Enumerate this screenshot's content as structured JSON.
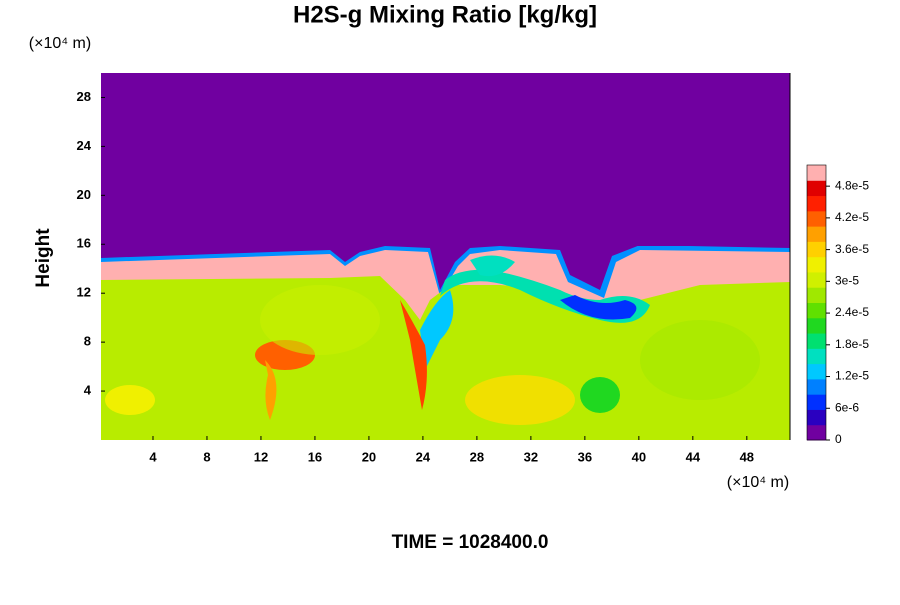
{
  "chart_data": {
    "type": "heatmap",
    "title": "H2S-g Mixing Ratio [kg/kg]",
    "y_label": "Height",
    "y_unit": "(×10⁴ m)",
    "x_unit": "(×10⁴ m)",
    "footer": "TIME = 1028400.0",
    "xlim": [
      0,
      51.2
    ],
    "ylim": [
      0,
      30
    ],
    "xticks": [
      4,
      8,
      12,
      16,
      20,
      24,
      28,
      32,
      36,
      40,
      44,
      48
    ],
    "yticks": [
      4,
      8,
      12,
      16,
      20,
      24,
      28
    ],
    "clim": [
      0,
      5.2e-05
    ],
    "cticks": [
      0,
      {
        "value": 6e-06,
        "label": "6e-6"
      },
      {
        "value": 1.2e-05,
        "label": "1.2e-5"
      },
      {
        "value": 1.8e-05,
        "label": "1.8e-5"
      },
      {
        "value": 2.4e-05,
        "label": "2.4e-5"
      },
      {
        "value": 3e-05,
        "label": "3e-5"
      },
      {
        "value": 3.6e-05,
        "label": "3.6e-5"
      },
      {
        "value": 4.2e-05,
        "label": "4.2e-5"
      },
      {
        "value": 4.8e-05,
        "label": "4.8e-5"
      }
    ],
    "colormap": [
      "#7000a0",
      "#2a00c0",
      "#0030ff",
      "#0080ff",
      "#00c8ff",
      "#00e0c0",
      "#00e070",
      "#20d820",
      "#60e000",
      "#a0e800",
      "#d0f000",
      "#f0f000",
      "#ffd000",
      "#ffa000",
      "#ff6000",
      "#ff2000",
      "#e00000",
      "#ffb0b0"
    ]
  }
}
